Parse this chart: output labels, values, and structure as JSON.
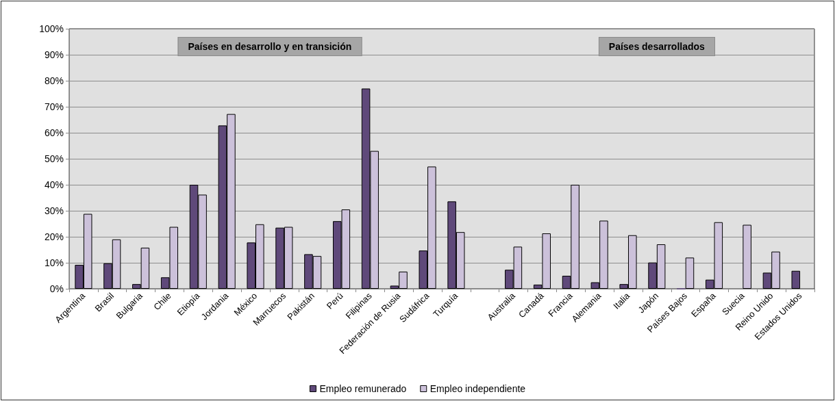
{
  "chart_data": {
    "type": "bar",
    "categories": [
      "Argentina",
      "Brasil",
      "Bulgaria",
      "Chile",
      "Etiopía",
      "Jordania",
      "México",
      "Marruecos",
      "Pakistán",
      "Perú",
      "Filipinas",
      "Federación de Rusia",
      "Sudáfrica",
      "Turquía",
      null,
      "Australia",
      "Canadá",
      "Francia",
      "Alemania",
      "Italia",
      "Japón",
      "Países Bajos",
      "España",
      "Suecia",
      "Reino Unido",
      "Estados Unidos"
    ],
    "series": [
      {
        "name": "Empleo remunerado",
        "color": "#5f497a",
        "values": [
          9.2,
          9.8,
          1.8,
          4.4,
          40,
          62.8,
          17.8,
          23.5,
          13.3,
          26,
          77,
          1.2,
          14.7,
          33.6,
          null,
          7.3,
          1.6,
          5,
          2.5,
          1.8,
          10.1,
          0,
          3.5,
          null,
          6.2,
          6.9
        ]
      },
      {
        "name": "Empleo independiente",
        "color": "#ccc1da",
        "values": [
          28.8,
          19,
          15.8,
          23.8,
          36.2,
          67.2,
          24.8,
          23.8,
          12.6,
          30.5,
          53,
          6.6,
          47,
          21.8,
          null,
          16.2,
          21.3,
          40,
          26.2,
          20.6,
          17.1,
          12,
          25.6,
          24.6,
          14.3,
          null
        ]
      }
    ],
    "ylim": [
      0,
      100
    ],
    "yticks": [
      {
        "value": 0,
        "label": "0%"
      },
      {
        "value": 10,
        "label": "10%"
      },
      {
        "value": 20,
        "label": "20%"
      },
      {
        "value": 30,
        "label": "30%"
      },
      {
        "value": 40,
        "label": "40%"
      },
      {
        "value": 50,
        "label": "50%"
      },
      {
        "value": 60,
        "label": "60%"
      },
      {
        "value": 70,
        "label": "70%"
      },
      {
        "value": 80,
        "label": "80%"
      },
      {
        "value": 90,
        "label": "90%"
      },
      {
        "value": 100,
        "label": "100%"
      }
    ],
    "annotations": [
      "Países en desarrollo y en transición",
      "Países desarrollados"
    ],
    "grid": "y",
    "legend": "bottom"
  }
}
